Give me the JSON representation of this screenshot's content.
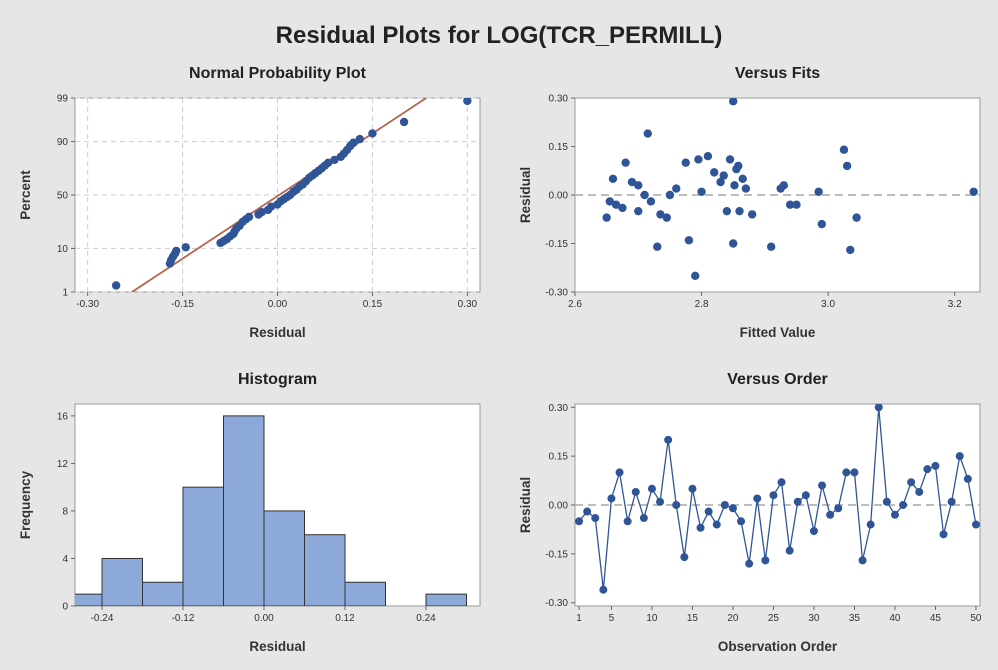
{
  "title": "Residual Plots for LOG(TCR_PERMILL)",
  "colors": {
    "background": "#e6e6e6",
    "plot_bg": "#ffffff",
    "point": "#2f5597",
    "fit_line": "#b5654e",
    "bar_fill": "#8ca9d9",
    "grid": "#cccccc",
    "ref_line": "#bdbdbd"
  },
  "chart_data": [
    {
      "id": "npp",
      "type": "scatter",
      "title": "Normal Probability Plot",
      "xlabel": "Residual",
      "ylabel": "Percent",
      "xlim": [
        -0.32,
        0.32
      ],
      "ylim": [
        1,
        99
      ],
      "y_scale": "normal-probability",
      "xticks": [
        -0.3,
        -0.15,
        0.0,
        0.15,
        0.3
      ],
      "xtick_labels": [
        "-0.30",
        "-0.15",
        "0.00",
        "0.15",
        "0.30"
      ],
      "yticks": [
        1,
        10,
        50,
        90,
        99
      ],
      "ytick_labels": [
        "1",
        "10",
        "50",
        "90",
        "99"
      ],
      "grid": true,
      "fit_line": {
        "x": [
          -0.23,
          0.235
        ],
        "y": [
          1,
          99
        ]
      },
      "points": {
        "x": [
          -0.255,
          -0.17,
          -0.168,
          -0.165,
          -0.162,
          -0.16,
          -0.145,
          -0.09,
          -0.085,
          -0.08,
          -0.075,
          -0.07,
          -0.068,
          -0.065,
          -0.06,
          -0.055,
          -0.05,
          -0.045,
          -0.03,
          -0.025,
          -0.015,
          -0.01,
          0.0,
          0.005,
          0.01,
          0.015,
          0.02,
          0.025,
          0.03,
          0.035,
          0.04,
          0.045,
          0.05,
          0.055,
          0.06,
          0.065,
          0.07,
          0.075,
          0.08,
          0.09,
          0.1,
          0.105,
          0.11,
          0.115,
          0.12,
          0.13,
          0.15,
          0.2,
          0.3
        ],
        "y": [
          1.5,
          5,
          6,
          7,
          8,
          9,
          10.5,
          12.5,
          13.5,
          14.5,
          16,
          17.5,
          19,
          21,
          23,
          26,
          28,
          30,
          32,
          34,
          36,
          39,
          41,
          44,
          46,
          48,
          50,
          53,
          55,
          58,
          60,
          63,
          66,
          68,
          70,
          72,
          74,
          76,
          78,
          80,
          82,
          84,
          86,
          88,
          89.5,
          91,
          93,
          96,
          98.8
        ]
      }
    },
    {
      "id": "fits",
      "type": "scatter",
      "title": "Versus Fits",
      "xlabel": "Fitted Value",
      "ylabel": "Residual",
      "xlim": [
        2.6,
        3.24
      ],
      "ylim": [
        -0.3,
        0.3
      ],
      "xticks": [
        2.6,
        2.8,
        3.0,
        3.2
      ],
      "xtick_labels": [
        "2.6",
        "2.8",
        "3.0",
        "3.2"
      ],
      "yticks": [
        -0.3,
        -0.15,
        0.0,
        0.15,
        0.3
      ],
      "ytick_labels": [
        "-0.30",
        "-0.15",
        "0.00",
        "0.15",
        "0.30"
      ],
      "ref_line": 0,
      "points": {
        "x": [
          2.65,
          2.655,
          2.66,
          2.665,
          2.675,
          2.68,
          2.69,
          2.7,
          2.7,
          2.71,
          2.715,
          2.72,
          2.73,
          2.735,
          2.745,
          2.75,
          2.76,
          2.775,
          2.78,
          2.79,
          2.795,
          2.8,
          2.81,
          2.82,
          2.83,
          2.835,
          2.84,
          2.845,
          2.85,
          2.85,
          2.855,
          2.86,
          2.865,
          2.87,
          2.88,
          2.91,
          2.925,
          2.93,
          2.94,
          2.95,
          2.985,
          2.99,
          3.025,
          3.03,
          3.035,
          3.045,
          3.23,
          2.852,
          2.858
        ],
        "y": [
          -0.07,
          -0.02,
          0.05,
          -0.03,
          -0.04,
          0.1,
          0.04,
          -0.05,
          0.03,
          0.0,
          0.19,
          -0.02,
          -0.16,
          -0.06,
          -0.07,
          0.0,
          0.02,
          0.1,
          -0.14,
          -0.25,
          0.11,
          0.01,
          0.12,
          0.07,
          0.04,
          0.06,
          -0.05,
          0.11,
          0.29,
          -0.15,
          0.08,
          -0.05,
          0.05,
          0.02,
          -0.06,
          -0.16,
          0.02,
          0.03,
          -0.03,
          -0.03,
          0.01,
          -0.09,
          0.14,
          0.09,
          -0.17,
          -0.07,
          0.01,
          0.03,
          0.09
        ]
      }
    },
    {
      "id": "hist",
      "type": "bar",
      "title": "Histogram",
      "xlabel": "Residual",
      "ylabel": "Frequency",
      "xlim": [
        -0.28,
        0.32
      ],
      "ylim": [
        0,
        17
      ],
      "xticks": [
        -0.24,
        -0.12,
        0.0,
        0.12,
        0.24
      ],
      "xtick_labels": [
        "-0.24",
        "-0.12",
        "0.00",
        "0.12",
        "0.24"
      ],
      "yticks": [
        0,
        4,
        8,
        12,
        16
      ],
      "ytick_labels": [
        "0",
        "4",
        "8",
        "12",
        "16"
      ],
      "bin_width": 0.06,
      "bins": [
        {
          "center": -0.27,
          "value": 1
        },
        {
          "center": -0.21,
          "value": 4
        },
        {
          "center": -0.15,
          "value": 2
        },
        {
          "center": -0.09,
          "value": 10
        },
        {
          "center": -0.03,
          "value": 16
        },
        {
          "center": 0.03,
          "value": 8
        },
        {
          "center": 0.09,
          "value": 6
        },
        {
          "center": 0.15,
          "value": 2
        },
        {
          "center": 0.21,
          "value": 0
        },
        {
          "center": 0.27,
          "value": 1
        }
      ]
    },
    {
      "id": "order",
      "type": "line",
      "title": "Versus Order",
      "xlabel": "Observation Order",
      "ylabel": "Residual",
      "xlim": [
        0.5,
        50.5
      ],
      "ylim": [
        -0.31,
        0.31
      ],
      "xticks": [
        1,
        5,
        10,
        15,
        20,
        25,
        30,
        35,
        40,
        45,
        50
      ],
      "xtick_labels": [
        "1",
        "5",
        "10",
        "15",
        "20",
        "25",
        "30",
        "35",
        "40",
        "45",
        "50"
      ],
      "yticks": [
        -0.3,
        -0.15,
        0.0,
        0.15,
        0.3
      ],
      "ytick_labels": [
        "-0.30",
        "-0.15",
        "0.00",
        "0.15",
        "0.30"
      ],
      "ref_line": 0,
      "series": [
        {
          "x": [
            1,
            2,
            3,
            4,
            5,
            6,
            7,
            8,
            9,
            10,
            11,
            12,
            13,
            14,
            15,
            16,
            17,
            18,
            19,
            20,
            21,
            22,
            23,
            24,
            25,
            26,
            27,
            28,
            29,
            30,
            31,
            32,
            33,
            34,
            35,
            36,
            37,
            38,
            39,
            40,
            41,
            42,
            43,
            44,
            45,
            46,
            47,
            48,
            49,
            50
          ],
          "values": [
            -0.05,
            -0.02,
            -0.04,
            -0.26,
            0.02,
            0.1,
            -0.05,
            0.04,
            -0.04,
            0.05,
            0.01,
            0.2,
            0.0,
            -0.16,
            0.05,
            -0.07,
            -0.02,
            -0.06,
            0.0,
            -0.01,
            -0.05,
            -0.18,
            0.02,
            -0.17,
            0.03,
            0.07,
            -0.14,
            0.01,
            0.03,
            -0.08,
            0.06,
            -0.03,
            -0.01,
            0.1,
            0.1,
            -0.17,
            -0.06,
            0.3,
            0.01,
            -0.03,
            0.0,
            0.07,
            0.04,
            0.11,
            0.12,
            -0.09,
            0.01,
            0.15,
            0.08,
            -0.06
          ]
        }
      ]
    }
  ]
}
